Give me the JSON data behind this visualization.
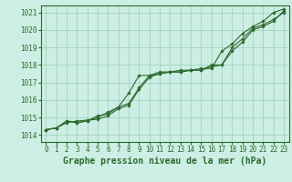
{
  "title": "Graphe pression niveau de la mer (hPa)",
  "xlabel_hours": [
    0,
    1,
    2,
    3,
    4,
    5,
    6,
    7,
    8,
    9,
    10,
    11,
    12,
    13,
    14,
    15,
    16,
    17,
    18,
    19,
    20,
    21,
    22,
    23
  ],
  "ylim": [
    1013.6,
    1021.4
  ],
  "yticks": [
    1014,
    1015,
    1016,
    1017,
    1018,
    1019,
    1020,
    1021
  ],
  "line1": [
    1014.3,
    1014.4,
    1014.7,
    1014.8,
    1014.85,
    1014.9,
    1015.1,
    1015.5,
    1015.7,
    1016.6,
    1017.3,
    1017.5,
    1017.6,
    1017.6,
    1017.7,
    1017.7,
    1018.0,
    1018.0,
    1019.0,
    1019.5,
    1020.1,
    1020.3,
    1020.6,
    1021.0
  ],
  "line2": [
    1014.3,
    1014.4,
    1014.8,
    1014.7,
    1014.8,
    1015.0,
    1015.3,
    1015.6,
    1016.4,
    1017.4,
    1017.4,
    1017.6,
    1017.6,
    1017.7,
    1017.7,
    1017.8,
    1017.8,
    1018.8,
    1019.2,
    1019.8,
    1020.2,
    1020.5,
    1021.0,
    1021.2
  ],
  "line3": [
    1014.3,
    1014.4,
    1014.8,
    1014.7,
    1014.8,
    1015.1,
    1015.2,
    1015.6,
    1015.8,
    1016.7,
    1017.4,
    1017.5,
    1017.6,
    1017.6,
    1017.7,
    1017.7,
    1017.9,
    1018.0,
    1018.8,
    1019.3,
    1020.0,
    1020.2,
    1020.5,
    1021.1
  ],
  "line_color": "#2d6a2d",
  "bg_color": "#cceee4",
  "grid_color": "#99ccbb",
  "marker": "D",
  "marker_size": 1.8,
  "line_width": 0.8,
  "title_fontsize": 7,
  "tick_fontsize": 5.5
}
